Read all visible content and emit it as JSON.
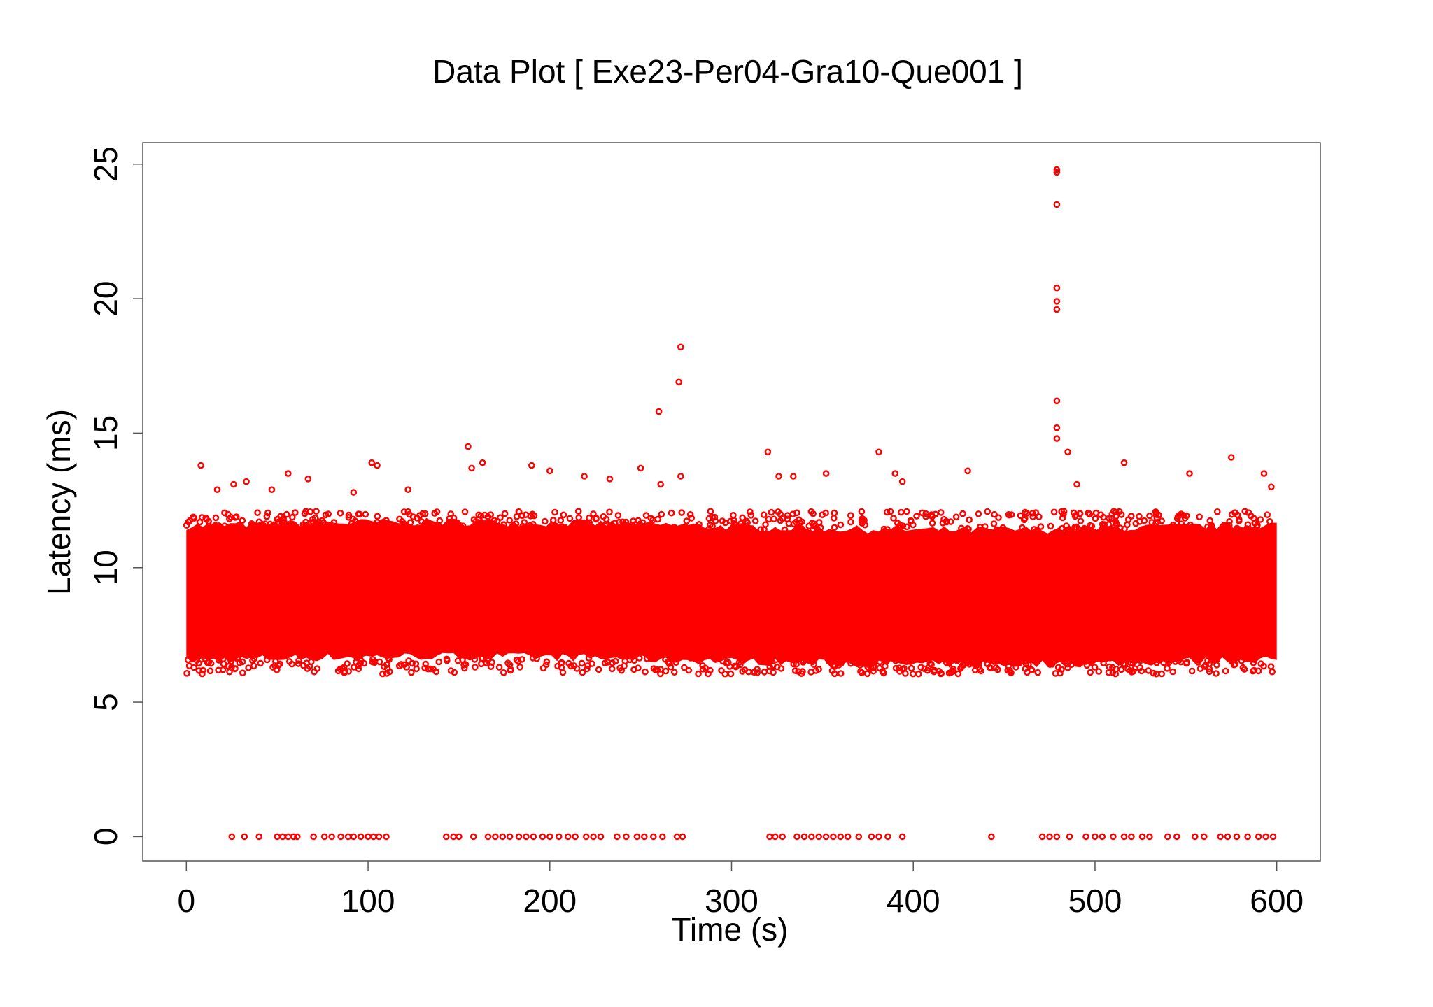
{
  "chart_data": {
    "type": "scatter",
    "title": "Data Plot [ Exe23-Per04-Gra10-Que001 ]",
    "xlabel": "Time (s)",
    "ylabel": "Latency (ms)",
    "xlim": [
      -24,
      624
    ],
    "ylim": [
      -0.9,
      25.8
    ],
    "xticks": [
      0,
      100,
      200,
      300,
      400,
      500,
      600
    ],
    "yticks": [
      0,
      5,
      10,
      15,
      20,
      25
    ],
    "grid": false,
    "marker": "open-circle",
    "color": "#ff0000",
    "series": [
      {
        "dense_band": {
          "x_range": [
            0,
            600
          ],
          "y_range": [
            6.0,
            12.0
          ],
          "center": 9.0
        },
        "outliers": [
          [
            8,
            13.8
          ],
          [
            17,
            12.9
          ],
          [
            26,
            13.1
          ],
          [
            33,
            13.2
          ],
          [
            47,
            12.9
          ],
          [
            56,
            13.5
          ],
          [
            67,
            13.3
          ],
          [
            92,
            12.8
          ],
          [
            102,
            13.9
          ],
          [
            105,
            13.8
          ],
          [
            122,
            12.9
          ],
          [
            155,
            14.5
          ],
          [
            157,
            13.7
          ],
          [
            163,
            13.9
          ],
          [
            190,
            13.8
          ],
          [
            200,
            13.6
          ],
          [
            219,
            13.4
          ],
          [
            233,
            13.3
          ],
          [
            250,
            13.7
          ],
          [
            260,
            15.8
          ],
          [
            261,
            13.1
          ],
          [
            271,
            16.9
          ],
          [
            272,
            18.2
          ],
          [
            272,
            13.4
          ],
          [
            320,
            14.3
          ],
          [
            326,
            13.4
          ],
          [
            334,
            13.4
          ],
          [
            352,
            13.5
          ],
          [
            381,
            14.3
          ],
          [
            390,
            13.5
          ],
          [
            394,
            13.2
          ],
          [
            430,
            13.6
          ],
          [
            479,
            24.8
          ],
          [
            479,
            24.7
          ],
          [
            479,
            23.5
          ],
          [
            479,
            20.4
          ],
          [
            479,
            19.9
          ],
          [
            479,
            19.6
          ],
          [
            479,
            16.2
          ],
          [
            479,
            15.2
          ],
          [
            479,
            14.8
          ],
          [
            485,
            14.3
          ],
          [
            490,
            13.1
          ],
          [
            516,
            13.9
          ],
          [
            552,
            13.5
          ],
          [
            575,
            14.1
          ],
          [
            593,
            13.5
          ],
          [
            597,
            13.0
          ]
        ],
        "zero_points": [
          25,
          32,
          40,
          50,
          53,
          56,
          59,
          61,
          70,
          76,
          80,
          85,
          89,
          92,
          96,
          100,
          103,
          106,
          110,
          143,
          147,
          150,
          158,
          166,
          170,
          174,
          178,
          183,
          187,
          191,
          196,
          200,
          205,
          210,
          214,
          220,
          224,
          228,
          237,
          242,
          248,
          252,
          257,
          262,
          270,
          273,
          321,
          324,
          328,
          336,
          340,
          344,
          348,
          352,
          356,
          360,
          364,
          370,
          377,
          381,
          386,
          394,
          443,
          471,
          475,
          479,
          486,
          495,
          500,
          504,
          510,
          516,
          520,
          526,
          530,
          540,
          545,
          555,
          560,
          569,
          573,
          578,
          584,
          590,
          594,
          598
        ]
      }
    ]
  }
}
